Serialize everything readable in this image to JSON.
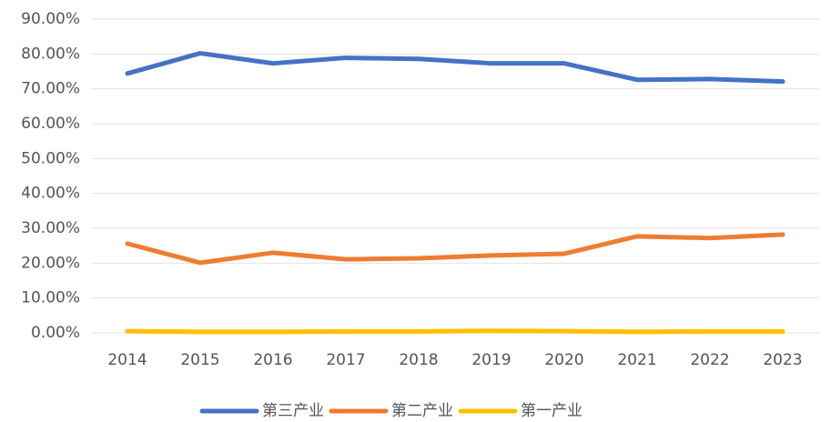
{
  "chart_data": {
    "type": "line",
    "categories": [
      "2014",
      "2015",
      "2016",
      "2017",
      "2018",
      "2019",
      "2020",
      "2021",
      "2022",
      "2023"
    ],
    "series": [
      {
        "name": "第三产业",
        "color": "#4472c4",
        "values": [
          74.4,
          80.2,
          77.3,
          78.9,
          78.6,
          77.3,
          77.3,
          72.6,
          72.8,
          72.1
        ]
      },
      {
        "name": "第二产业",
        "color": "#ed7d31",
        "values": [
          25.6,
          20.1,
          23.0,
          21.1,
          21.4,
          22.2,
          22.7,
          27.7,
          27.2,
          28.2
        ]
      },
      {
        "name": "第一产业",
        "color": "#ffc000",
        "values": [
          0.5,
          0.3,
          0.3,
          0.4,
          0.4,
          0.6,
          0.5,
          0.3,
          0.4,
          0.4
        ]
      }
    ],
    "ylim": [
      0,
      90
    ],
    "yticks": [
      {
        "value": 0,
        "label": "0.00%"
      },
      {
        "value": 10,
        "label": "10.00%"
      },
      {
        "value": 20,
        "label": "20.00%"
      },
      {
        "value": 30,
        "label": "30.00%"
      },
      {
        "value": 40,
        "label": "40.00%"
      },
      {
        "value": 50,
        "label": "50.00%"
      },
      {
        "value": 60,
        "label": "60.00%"
      },
      {
        "value": 70,
        "label": "70.00%"
      },
      {
        "value": 80,
        "label": "80.00%"
      },
      {
        "value": 90,
        "label": "90.00%"
      }
    ],
    "grid": true,
    "legend": "bottom"
  }
}
